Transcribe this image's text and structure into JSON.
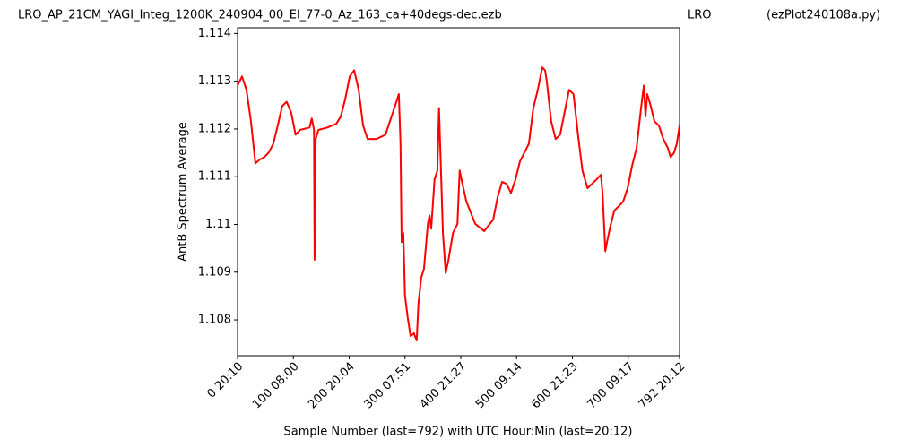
{
  "chart_data": {
    "type": "line",
    "titles": [
      "LRO_AP_21CM_YAGI_Integ_1200K_240904_00_El_77-0_Az_163_ca+40degs-dec.ezb",
      "LRO",
      "(ezPlot240108a.py)"
    ],
    "x_label": "Sample Number (last=792) with UTC Hour:Min (last=20:12)",
    "y_label": "AntB Spectrum Average",
    "xlim": [
      0,
      792
    ],
    "ylim": [
      1.10725,
      1.11412
    ],
    "xticks": [
      {
        "value": 0,
        "label": "0  20:10"
      },
      {
        "value": 100,
        "label": "100  08:00"
      },
      {
        "value": 200,
        "label": "200  20:04"
      },
      {
        "value": 300,
        "label": "300  07:51"
      },
      {
        "value": 400,
        "label": "400  21:27"
      },
      {
        "value": 500,
        "label": "500  09:14"
      },
      {
        "value": 600,
        "label": "600  21:23"
      },
      {
        "value": 700,
        "label": "700  09:17"
      },
      {
        "value": 792,
        "label": "792  20:12"
      }
    ],
    "yticks": [
      1.108,
      1.109,
      1.11,
      {
        "value": 1.111,
        "label": "1.111"
      },
      1.112,
      1.113,
      1.114
    ],
    "x": [
      0,
      8,
      16,
      24,
      32,
      40,
      48,
      56,
      64,
      72,
      80,
      88,
      96,
      104,
      112,
      129,
      133,
      137,
      138,
      140,
      145,
      161,
      177,
      185,
      193,
      201,
      209,
      217,
      225,
      233,
      249,
      265,
      281,
      289,
      292,
      294,
      297,
      300,
      305,
      310,
      316,
      321,
      324,
      329,
      334,
      341,
      344,
      347,
      353,
      358,
      361,
      365,
      368,
      373,
      378,
      386,
      394,
      398,
      403,
      410,
      426,
      442,
      458,
      466,
      474,
      482,
      490,
      498,
      506,
      522,
      530,
      538,
      546,
      551,
      554,
      562,
      570,
      578,
      586,
      594,
      602,
      610,
      618,
      627,
      635,
      643,
      651,
      654,
      659,
      662,
      667,
      675,
      683,
      691,
      699,
      707,
      715,
      723,
      728,
      731,
      734,
      739,
      747,
      755,
      763,
      771,
      776,
      782,
      787,
      792
    ],
    "series": [
      {
        "color": "#ff0000",
        "values": [
          1.11291,
          1.1131,
          1.11282,
          1.11216,
          1.11128,
          1.11136,
          1.11141,
          1.11151,
          1.11169,
          1.11207,
          1.11248,
          1.11257,
          1.11235,
          1.11188,
          1.11198,
          1.11203,
          1.11222,
          1.11198,
          1.10926,
          1.11179,
          1.11198,
          1.11203,
          1.11211,
          1.11226,
          1.11263,
          1.1131,
          1.11323,
          1.11282,
          1.11207,
          1.11179,
          1.11179,
          1.11188,
          1.11244,
          1.11273,
          1.11169,
          1.10963,
          1.10982,
          1.10851,
          1.10804,
          1.10766,
          1.10772,
          1.10757,
          1.10832,
          1.10888,
          1.10907,
          1.11001,
          1.11019,
          1.10991,
          1.11094,
          1.11113,
          1.11244,
          1.11094,
          1.10982,
          1.10898,
          1.10926,
          1.10982,
          1.11001,
          1.11113,
          1.11085,
          1.11048,
          1.11001,
          1.10986,
          1.1101,
          1.11057,
          1.11089,
          1.11085,
          1.11066,
          1.11094,
          1.11132,
          1.11169,
          1.11244,
          1.11282,
          1.11329,
          1.11323,
          1.11301,
          1.11216,
          1.11179,
          1.11188,
          1.11235,
          1.11282,
          1.11273,
          1.11188,
          1.11113,
          1.11076,
          1.11085,
          1.11094,
          1.11104,
          1.11066,
          1.10944,
          1.10963,
          1.10991,
          1.11029,
          1.11038,
          1.11048,
          1.11076,
          1.11123,
          1.1116,
          1.11244,
          1.11291,
          1.11226,
          1.11273,
          1.11254,
          1.11216,
          1.11207,
          1.11179,
          1.1116,
          1.11141,
          1.1115,
          1.11169,
          1.11207
        ]
      }
    ]
  }
}
